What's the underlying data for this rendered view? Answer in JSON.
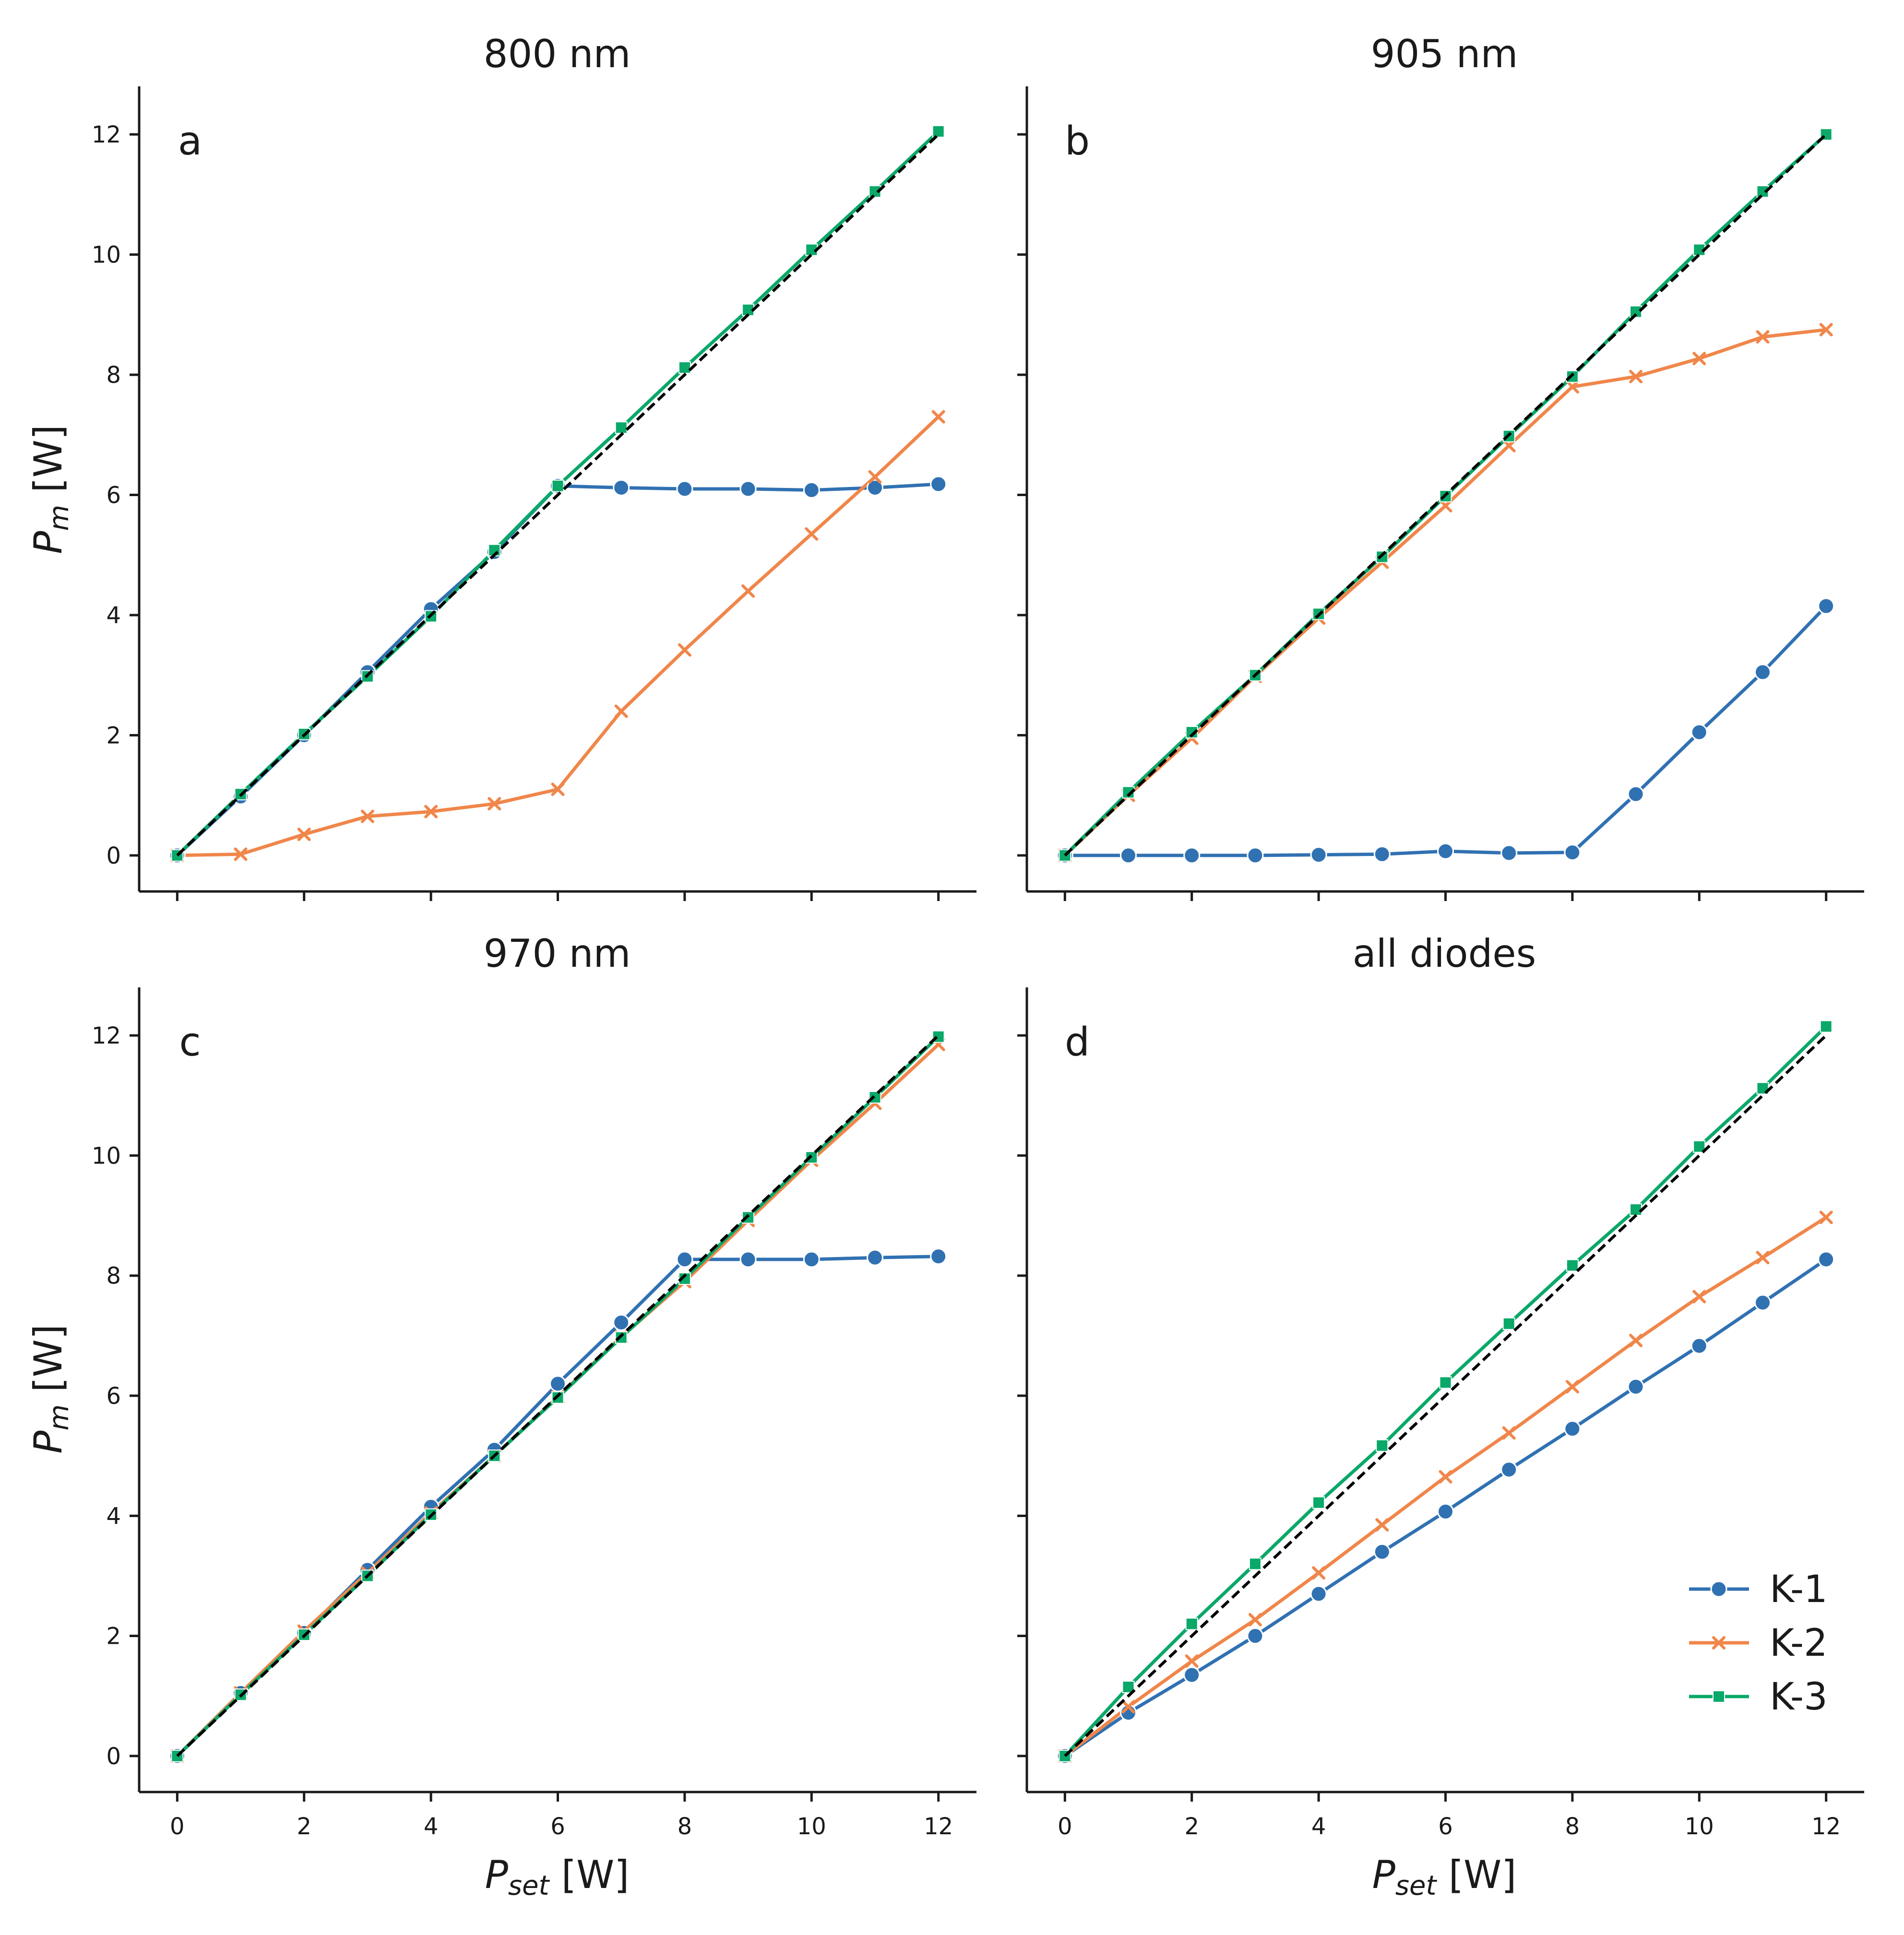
{
  "colors": {
    "K-1": "#3071b2",
    "K-2": "#f0864a",
    "K-3": "#0aa869",
    "reference": "#000000"
  },
  "axis_labels": {
    "ylabel_main": "P",
    "ylabel_sub": "m",
    "ylabel_unit": " [W]",
    "xlabel_main": "P",
    "xlabel_sub": "set",
    "xlabel_unit": " [W]"
  },
  "chart_data": [
    {
      "type": "line",
      "panel": "a",
      "title": "800 nm",
      "x": [
        0,
        1,
        2,
        3,
        4,
        5,
        6,
        7,
        8,
        9,
        10,
        11,
        12
      ],
      "xlim": [
        -0.6,
        12.6
      ],
      "ylim": [
        -0.6,
        12.8
      ],
      "xticks": [
        0,
        2,
        4,
        6,
        8,
        10,
        12
      ],
      "yticks": [
        0,
        2,
        4,
        6,
        8,
        10,
        12
      ],
      "series": [
        {
          "name": "K-1",
          "marker": "circle",
          "values": [
            0,
            0.98,
            2.0,
            3.05,
            4.1,
            5.05,
            6.15,
            6.12,
            6.1,
            6.1,
            6.08,
            6.12,
            6.18
          ]
        },
        {
          "name": "K-2",
          "marker": "x",
          "values": [
            0,
            0.02,
            0.35,
            0.65,
            0.73,
            0.86,
            1.1,
            2.4,
            3.42,
            4.4,
            5.35,
            6.3,
            7.3
          ]
        },
        {
          "name": "K-3",
          "marker": "square",
          "values": [
            0,
            1.02,
            2.02,
            2.98,
            3.98,
            5.08,
            6.15,
            7.12,
            8.12,
            9.08,
            10.08,
            11.05,
            12.05
          ]
        }
      ],
      "reference": {
        "style": "dashed",
        "x": [
          0,
          12
        ],
        "y": [
          0,
          12
        ]
      }
    },
    {
      "type": "line",
      "panel": "b",
      "title": "905 nm",
      "x": [
        0,
        1,
        2,
        3,
        4,
        5,
        6,
        7,
        8,
        9,
        10,
        11,
        12
      ],
      "xlim": [
        -0.6,
        12.6
      ],
      "ylim": [
        -0.6,
        12.8
      ],
      "xticks": [
        0,
        2,
        4,
        6,
        8,
        10,
        12
      ],
      "yticks": [
        0,
        2,
        4,
        6,
        8,
        10,
        12
      ],
      "series": [
        {
          "name": "K-1",
          "marker": "circle",
          "values": [
            0,
            0,
            0,
            0,
            0.01,
            0.02,
            0.07,
            0.04,
            0.05,
            1.02,
            2.05,
            3.05,
            4.15
          ]
        },
        {
          "name": "K-2",
          "marker": "x",
          "values": [
            0,
            1.0,
            1.95,
            2.98,
            3.95,
            4.88,
            5.82,
            6.82,
            7.8,
            7.97,
            8.27,
            8.63,
            8.75
          ]
        },
        {
          "name": "K-3",
          "marker": "square",
          "values": [
            0,
            1.05,
            2.05,
            3.0,
            4.02,
            4.97,
            5.98,
            6.98,
            7.97,
            9.05,
            10.08,
            11.05,
            12.0
          ]
        }
      ],
      "reference": {
        "style": "dashed",
        "x": [
          0,
          12
        ],
        "y": [
          0,
          12
        ]
      }
    },
    {
      "type": "line",
      "panel": "c",
      "title": "970 nm",
      "x": [
        0,
        1,
        2,
        3,
        4,
        5,
        6,
        7,
        8,
        9,
        10,
        11,
        12
      ],
      "xlim": [
        -0.6,
        12.6
      ],
      "ylim": [
        -0.6,
        12.8
      ],
      "xticks": [
        0,
        2,
        4,
        6,
        8,
        10,
        12
      ],
      "yticks": [
        0,
        2,
        4,
        6,
        8,
        10,
        12
      ],
      "series": [
        {
          "name": "K-1",
          "marker": "circle",
          "values": [
            0,
            1.05,
            2.05,
            3.1,
            4.15,
            5.1,
            6.2,
            7.22,
            8.27,
            8.27,
            8.27,
            8.3,
            8.32
          ]
        },
        {
          "name": "K-2",
          "marker": "x",
          "values": [
            0,
            1.05,
            2.08,
            3.05,
            4.05,
            5.0,
            5.98,
            6.98,
            7.9,
            8.92,
            9.92,
            10.87,
            11.85
          ]
        },
        {
          "name": "K-3",
          "marker": "square",
          "values": [
            0,
            1.02,
            2.02,
            3.0,
            4.02,
            5.0,
            5.97,
            6.97,
            7.95,
            8.97,
            9.97,
            10.97,
            11.98
          ]
        }
      ],
      "reference": {
        "style": "dashed",
        "x": [
          0,
          12
        ],
        "y": [
          0,
          12
        ]
      }
    },
    {
      "type": "line",
      "panel": "d",
      "title": "all diodes",
      "x": [
        0,
        1,
        2,
        3,
        4,
        5,
        6,
        7,
        8,
        9,
        10,
        11,
        12
      ],
      "xlim": [
        -0.6,
        12.6
      ],
      "ylim": [
        -0.6,
        12.8
      ],
      "xticks": [
        0,
        2,
        4,
        6,
        8,
        10,
        12
      ],
      "yticks": [
        0,
        2,
        4,
        6,
        8,
        10,
        12
      ],
      "legend": {
        "position": "lower-right",
        "entries": [
          "K-1",
          "K-2",
          "K-3"
        ]
      },
      "series": [
        {
          "name": "K-1",
          "marker": "circle",
          "values": [
            0,
            0.72,
            1.35,
            2.0,
            2.7,
            3.4,
            4.07,
            4.77,
            5.45,
            6.15,
            6.83,
            7.55,
            8.27
          ]
        },
        {
          "name": "K-2",
          "marker": "x",
          "values": [
            0,
            0.82,
            1.58,
            2.27,
            3.05,
            3.85,
            4.65,
            5.38,
            6.15,
            6.92,
            7.65,
            8.3,
            8.97
          ]
        },
        {
          "name": "K-3",
          "marker": "square",
          "values": [
            0,
            1.15,
            2.2,
            3.2,
            4.22,
            5.17,
            6.22,
            7.2,
            8.17,
            9.1,
            10.15,
            11.12,
            12.15
          ]
        }
      ],
      "reference": {
        "style": "dashed",
        "x": [
          0,
          12
        ],
        "y": [
          0,
          12
        ]
      }
    }
  ]
}
